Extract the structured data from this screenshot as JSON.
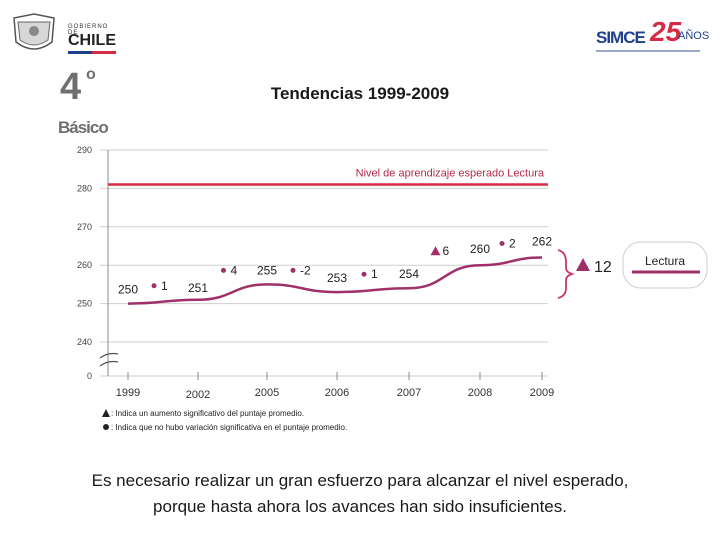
{
  "header": {
    "left_logo_line1": "GOBIERNO DE",
    "left_logo_line2": "CHILE",
    "right_logo_text": "SIMCE",
    "right_logo_years": "25",
    "right_logo_suffix": "AÑOS",
    "grade_number": "4",
    "grade_superscript": "o",
    "grade_word": "Básico"
  },
  "colors": {
    "series": "#a0306a",
    "reference": "#d62a45",
    "accent": "#c8356d"
  },
  "chart_data": {
    "type": "line",
    "title": "Tendencias 1999-2009",
    "x": [
      "1999",
      "2002",
      "2005",
      "2006",
      "2007",
      "2008",
      "2009"
    ],
    "series": [
      {
        "name": "Lectura",
        "values": [
          250,
          251,
          255,
          253,
          254,
          260,
          262
        ]
      }
    ],
    "value_labels": [
      "250",
      "251",
      "255",
      "253",
      "254",
      "260",
      "262"
    ],
    "changes": [
      {
        "text": "1",
        "marker": "dot"
      },
      {
        "text": "4",
        "marker": "dot"
      },
      {
        "text": "-2",
        "marker": "dot"
      },
      {
        "text": "1",
        "marker": "dot"
      },
      {
        "text": "6",
        "marker": "triangle"
      },
      {
        "text": "2",
        "marker": "dot"
      }
    ],
    "total_change": {
      "text": "12",
      "marker": "triangle"
    },
    "reference_line": {
      "value": 281,
      "label": "Nivel de aprendizaje esperado Lectura"
    },
    "y_ticks": [
      "290",
      "280",
      "270",
      "260",
      "250",
      "240",
      "0"
    ],
    "ylim": [
      240,
      290
    ],
    "axis_break": true,
    "legend": {
      "label": "Lectura",
      "placement": "right"
    },
    "notes": [
      ": Indica un aumento significativo del puntaje promedio.",
      ": Indica que no hubo variación significativa en el puntaje promedio."
    ]
  },
  "footer": {
    "line1": "Es necesario realizar un gran esfuerzo para alcanzar el nivel esperado,",
    "line2": "porque hasta ahora los avances han sido insuficientes."
  }
}
